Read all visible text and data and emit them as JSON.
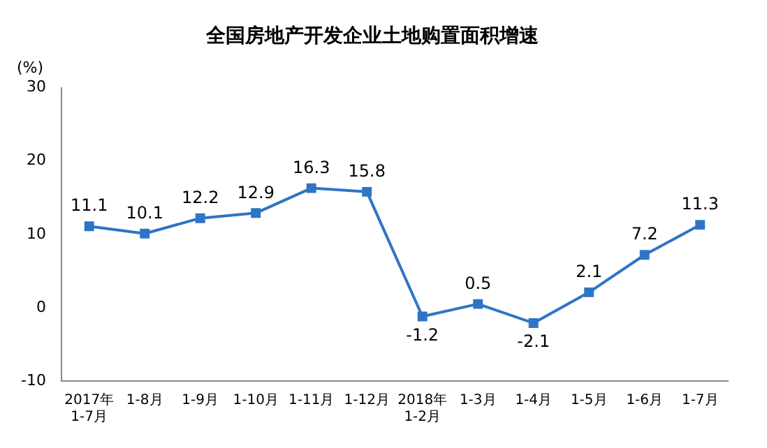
{
  "chart_data": {
    "type": "line",
    "title": "全国房地产开发企业土地购置面积增速",
    "ylabel": "(%)",
    "categories": [
      "2017年\n1-7月",
      "1-8月",
      "1-9月",
      "1-10月",
      "1-11月",
      "1-12月",
      "2018年\n1-2月",
      "1-3月",
      "1-4月",
      "1-5月",
      "1-6月",
      "1-7月"
    ],
    "series": [
      {
        "color": "#2e75c6",
        "values": [
          11.1,
          10.1,
          12.2,
          12.9,
          16.3,
          15.8,
          -1.2,
          0.5,
          -2.1,
          2.1,
          7.2,
          11.3
        ]
      }
    ],
    "ylim": [
      -10,
      30
    ],
    "yticks": [
      -10,
      0,
      10,
      20,
      30
    ],
    "grid": false,
    "legend": false,
    "marker": "square",
    "line_style": "solid",
    "data_labels": true
  }
}
